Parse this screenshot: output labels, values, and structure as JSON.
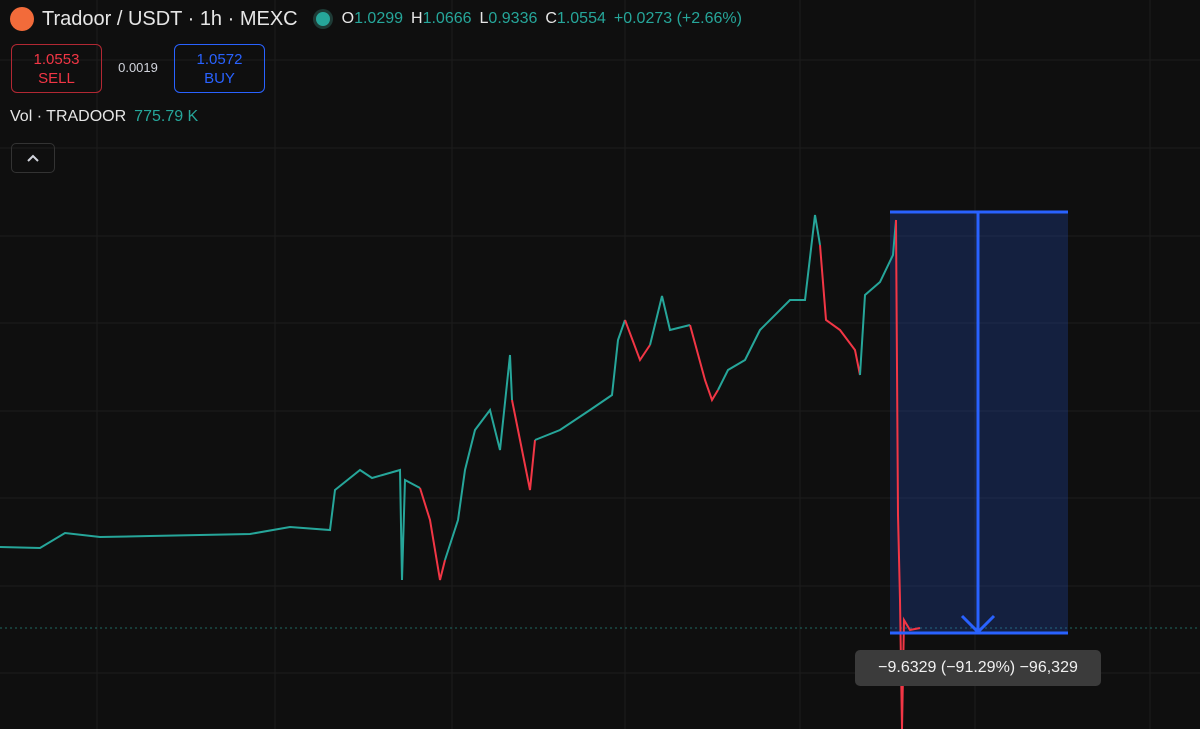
{
  "header": {
    "symbol": "Tradoor / USDT · 1h · MEXC",
    "ohlc": [
      {
        "key": "O",
        "value": "1.0299"
      },
      {
        "key": "H",
        "value": "1.0666"
      },
      {
        "key": "L",
        "value": "0.9336"
      },
      {
        "key": "C",
        "value": "1.0554"
      }
    ],
    "change": "+0.0273 (+2.66%)"
  },
  "trade": {
    "sell": {
      "price": "1.0553",
      "label": "SELL"
    },
    "spread": "0.0019",
    "buy": {
      "price": "1.0572",
      "label": "BUY"
    }
  },
  "volume": {
    "label": "Vol · TRADOOR",
    "value": "775.79 K"
  },
  "measure": {
    "label": "−9.6329 (−91.29%) −96,329"
  }
}
